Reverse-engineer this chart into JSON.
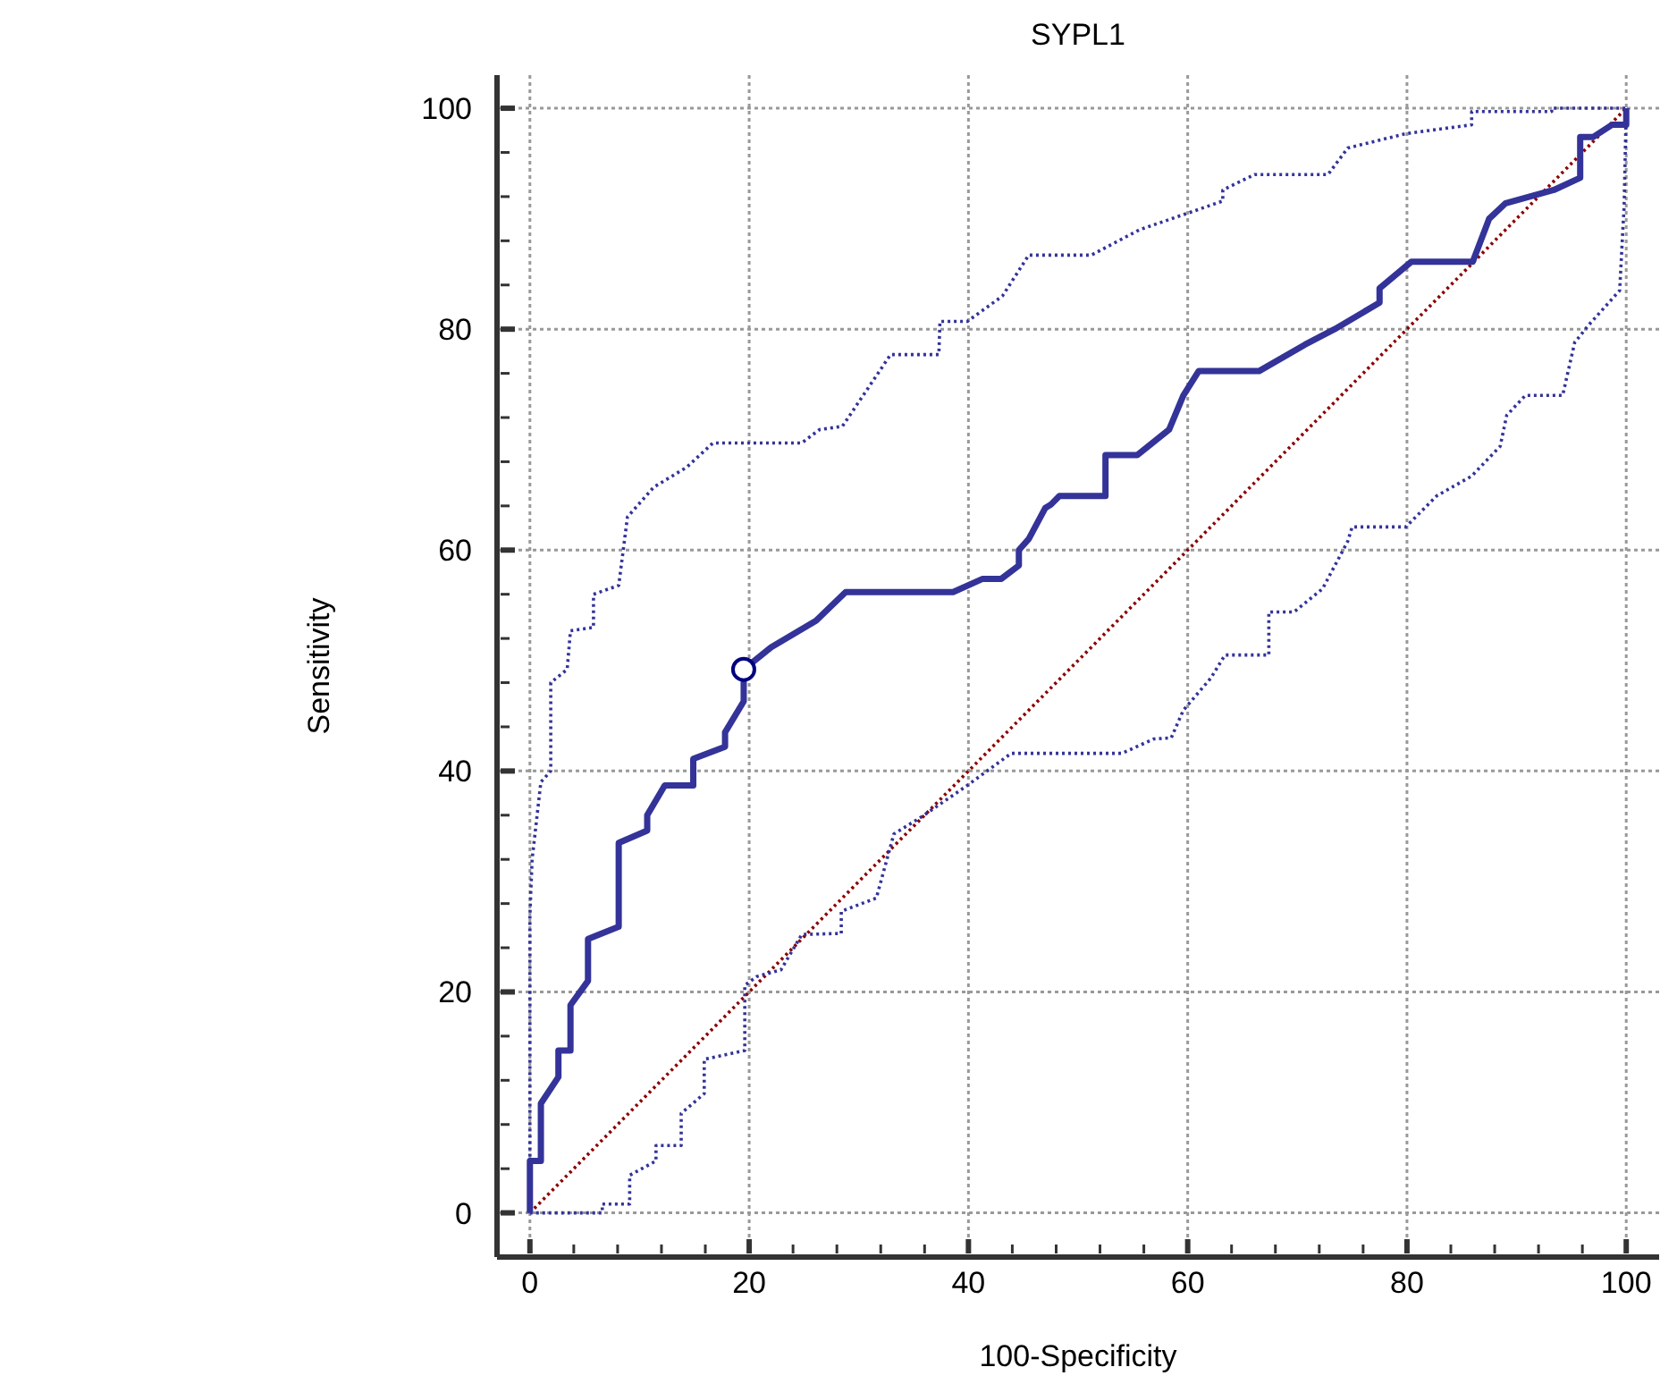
{
  "chart_data": {
    "type": "line",
    "title": "SYPL1",
    "xlabel": "100-Specificity",
    "ylabel": "Sensitivity",
    "xlim": [
      -3,
      103
    ],
    "ylim": [
      -4,
      103
    ],
    "xticks": [
      0,
      {
        "value": 4,
        "label": null
      },
      {
        "value": 8,
        "label": null
      },
      {
        "value": 12,
        "label": null
      },
      {
        "value": 16,
        "label": null
      },
      20,
      {
        "value": 24,
        "label": null
      },
      {
        "value": 28,
        "label": null
      },
      {
        "value": 32,
        "label": null
      },
      {
        "value": 36,
        "label": null
      },
      40,
      {
        "value": 44,
        "label": null
      },
      {
        "value": 48,
        "label": null
      },
      {
        "value": 52,
        "label": null
      },
      {
        "value": 56,
        "label": null
      },
      60,
      {
        "value": 64,
        "label": null
      },
      {
        "value": 68,
        "label": null
      },
      {
        "value": 72,
        "label": null
      },
      {
        "value": 76,
        "label": null
      },
      80,
      {
        "value": 84,
        "label": null
      },
      {
        "value": 88,
        "label": null
      },
      {
        "value": 92,
        "label": null
      },
      {
        "value": 96,
        "label": null
      },
      100
    ],
    "yticks": [
      0,
      {
        "value": 4,
        "label": null
      },
      {
        "value": 8,
        "label": null
      },
      {
        "value": 12,
        "label": null
      },
      {
        "value": 16,
        "label": null
      },
      20,
      {
        "value": 24,
        "label": null
      },
      {
        "value": 28,
        "label": null
      },
      {
        "value": 32,
        "label": null
      },
      {
        "value": 36,
        "label": null
      },
      40,
      {
        "value": 44,
        "label": null
      },
      {
        "value": 48,
        "label": null
      },
      {
        "value": 52,
        "label": null
      },
      {
        "value": 56,
        "label": null
      },
      60,
      {
        "value": 64,
        "label": null
      },
      {
        "value": 68,
        "label": null
      },
      {
        "value": 72,
        "label": null
      },
      {
        "value": 76,
        "label": null
      },
      80,
      {
        "value": 84,
        "label": null
      },
      {
        "value": 88,
        "label": null
      },
      {
        "value": 92,
        "label": null
      },
      {
        "value": 96,
        "label": null
      },
      100
    ],
    "grid": true,
    "legend": false,
    "series": [
      {
        "color": "#8b0000",
        "line_style": "dotted",
        "marker": "none",
        "x": [
          0,
          100
        ],
        "values": [
          0,
          100
        ]
      },
      {
        "color": "#333399",
        "line_style": "dotted",
        "marker": "none",
        "x": [
          0,
          0,
          0,
          0.2,
          1,
          1.9,
          1.9,
          3.4,
          3.7,
          5.8,
          5.8,
          8.1,
          8.9,
          11.3,
          14.3,
          16.7,
          24.8,
          26.4,
          28.5,
          32.9,
          37.3,
          37.4,
          39.9,
          43.1,
          45.5,
          51.2,
          55.6,
          60,
          63.2,
          63.2,
          66.1,
          72.8,
          74.6,
          79.9,
          85.9,
          85.9,
          93.2,
          93.2,
          100
        ],
        "values": [
          0,
          5.8,
          26.9,
          32,
          39,
          40,
          48,
          49.2,
          52.7,
          53,
          56,
          56.8,
          63,
          65.7,
          67.5,
          69.7,
          69.7,
          70.9,
          71.2,
          77.7,
          77.7,
          80.7,
          80.7,
          83,
          86.7,
          86.7,
          89,
          90.5,
          91.6,
          92.6,
          94,
          94,
          96.4,
          97.7,
          98.5,
          99.7,
          99.7,
          100,
          100
        ]
      },
      {
        "color": "#333399",
        "line_style": "dotted",
        "marker": "none",
        "x": [
          0,
          6.6,
          6.6,
          9.1,
          9.1,
          11.5,
          11.5,
          13.8,
          13.8,
          15.9,
          15.9,
          19.6,
          19.6,
          20.7,
          22.9,
          24.8,
          28.4,
          28.4,
          31.6,
          33.2,
          35.8,
          39.9,
          43.9,
          54,
          56.9,
          58.5,
          59.6,
          62.1,
          63.4,
          67.3,
          67.4,
          67.4,
          69.7,
          72.3,
          74.6,
          75,
          79.9,
          82.7,
          85.9,
          88.5,
          89.1,
          90.8,
          94.2,
          95.3,
          96.6,
          99.4,
          99.7,
          99.8,
          100
        ],
        "values": [
          0,
          0,
          0.8,
          0.8,
          3.4,
          4.7,
          6.1,
          6.1,
          9,
          10.8,
          13.9,
          14.7,
          20.6,
          21.4,
          22,
          25.2,
          25.3,
          27.3,
          28.5,
          34.3,
          35.9,
          38.7,
          41.6,
          41.6,
          42.9,
          43,
          45.5,
          48.4,
          50.5,
          50.5,
          50.5,
          54.4,
          54.4,
          56.5,
          60.8,
          62.1,
          62.1,
          64.9,
          66.7,
          69.4,
          72.2,
          74,
          74,
          78.8,
          80.4,
          83.5,
          89.2,
          90.9,
          100
        ]
      },
      {
        "color": "#333399",
        "line_style": "solid",
        "marker": "none",
        "x": [
          0,
          0,
          1,
          1,
          2.6,
          2.6,
          3.7,
          3.7,
          5.3,
          5.3,
          8.1,
          8.1,
          10.7,
          10.7,
          12.3,
          14.9,
          14.9,
          17.8,
          17.8,
          19.5,
          19.5,
          22,
          26.1,
          28.8,
          38.6,
          41.3,
          43,
          44.6,
          44.6,
          45.5,
          47,
          47.5,
          48.3,
          52.5,
          52.5,
          55.4,
          58.3,
          59.6,
          61,
          66.5,
          70.7,
          73.4,
          77.5,
          77.5,
          80.4,
          86,
          87.5,
          89,
          93.4,
          95.8,
          95.8,
          97,
          98.7,
          100,
          100
        ],
        "values": [
          0,
          4.7,
          4.7,
          9.9,
          12.3,
          14.7,
          14.7,
          18.8,
          21,
          24.8,
          25.9,
          33.5,
          34.6,
          36,
          38.7,
          38.7,
          41.1,
          42.2,
          43.5,
          46.3,
          49.2,
          51.2,
          53.6,
          56.2,
          56.2,
          57.4,
          57.4,
          58.6,
          60,
          61,
          63.8,
          64.1,
          64.9,
          64.9,
          68.6,
          68.6,
          70.9,
          74,
          76.2,
          76.2,
          78.6,
          80,
          82.4,
          83.7,
          86.1,
          86.1,
          90,
          91.4,
          92.6,
          93.7,
          97.4,
          97.4,
          98.5,
          98.5,
          100
        ]
      },
      {
        "type": "scatter",
        "color": "#000080",
        "marker": "circle",
        "x": [
          19.5
        ],
        "values": [
          49.2
        ]
      }
    ]
  }
}
